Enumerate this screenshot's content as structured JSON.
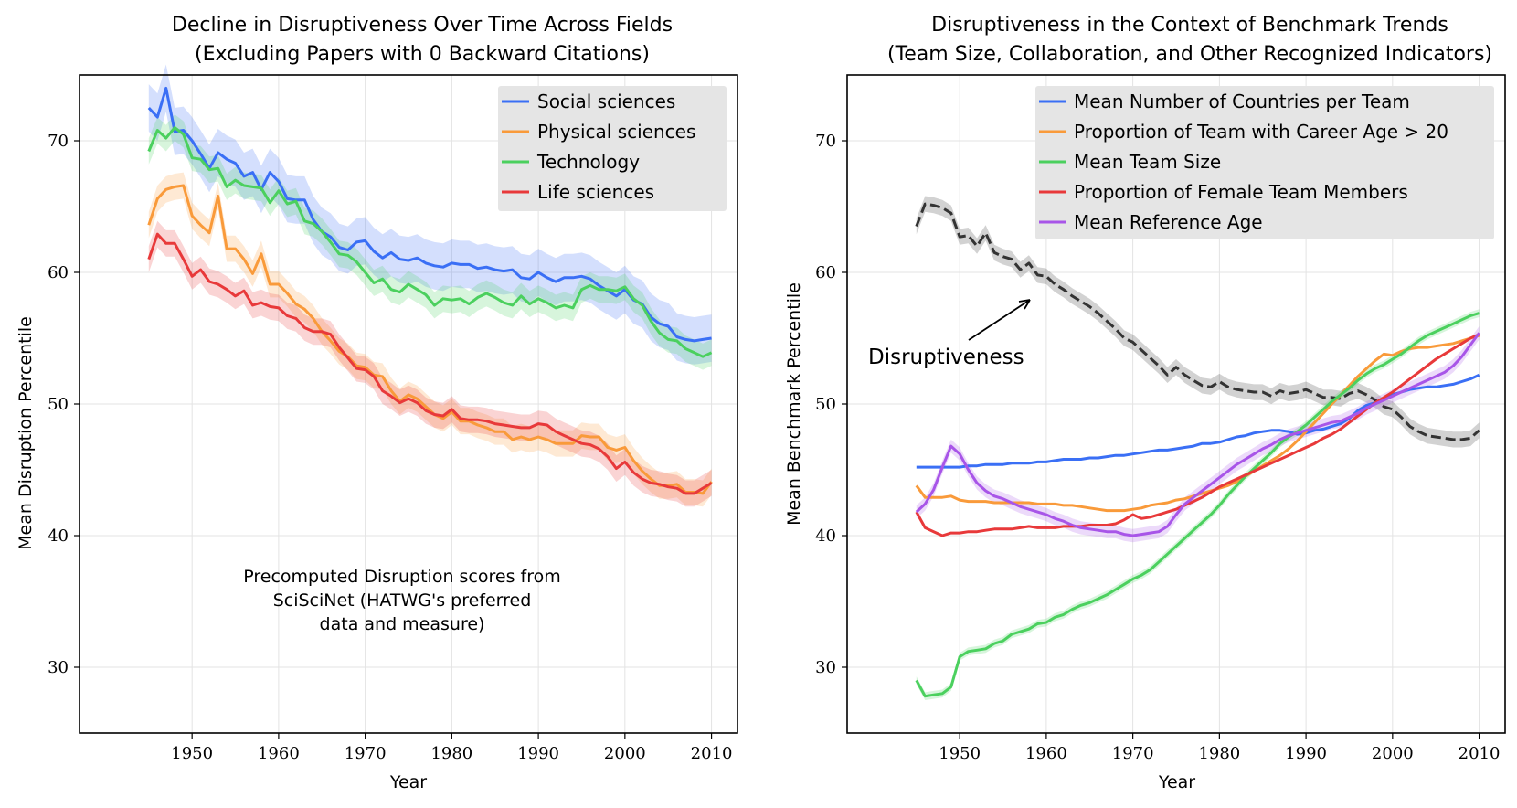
{
  "chart_data": [
    {
      "type": "line",
      "title_line1": "Decline in Disruptiveness Over Time Across Fields",
      "title_line2": "(Excluding Papers with 0 Backward Citations)",
      "xlabel": "Year",
      "ylabel": "Mean Disruption Percentile",
      "xlim": [
        1937,
        2013
      ],
      "ylim": [
        25,
        75
      ],
      "xticks": [
        1950,
        1960,
        1970,
        1980,
        1990,
        2000,
        2010
      ],
      "yticks": [
        30,
        40,
        50,
        60,
        70
      ],
      "grid": true,
      "legend_position": "top-right",
      "note_lines": [
        "Precomputed Disruption scores from",
        "SciSciNet (HATWG's preferred",
        "data and measure)"
      ],
      "x": [
        1945,
        1946,
        1947,
        1948,
        1949,
        1950,
        1951,
        1952,
        1953,
        1954,
        1955,
        1956,
        1957,
        1958,
        1959,
        1960,
        1961,
        1962,
        1963,
        1964,
        1965,
        1966,
        1967,
        1968,
        1969,
        1970,
        1971,
        1972,
        1973,
        1974,
        1975,
        1976,
        1977,
        1978,
        1979,
        1980,
        1981,
        1982,
        1983,
        1984,
        1985,
        1986,
        1987,
        1988,
        1989,
        1990,
        1991,
        1992,
        1993,
        1994,
        1995,
        1996,
        1997,
        1998,
        1999,
        2000,
        2001,
        2002,
        2003,
        2004,
        2005,
        2006,
        2007,
        2008,
        2009,
        2010
      ],
      "series": [
        {
          "name": "Social sciences",
          "color": "#3a6ff5",
          "band": 1.8,
          "values": [
            72.5,
            71.8,
            74.0,
            70.7,
            70.8,
            70.0,
            69.0,
            67.9,
            69.1,
            68.6,
            68.3,
            67.3,
            67.6,
            66.3,
            67.6,
            66.9,
            65.6,
            65.5,
            65.5,
            64.0,
            63.1,
            62.7,
            61.9,
            61.7,
            62.3,
            62.4,
            61.6,
            61.1,
            61.5,
            61.0,
            60.9,
            61.1,
            60.7,
            60.5,
            60.4,
            60.7,
            60.6,
            60.6,
            60.3,
            60.4,
            60.2,
            60.1,
            60.2,
            59.6,
            59.5,
            60.0,
            59.6,
            59.3,
            59.6,
            59.6,
            59.7,
            59.5,
            59.0,
            58.6,
            58.2,
            58.7,
            57.9,
            57.6,
            56.6,
            56.1,
            55.9,
            55.1,
            54.9,
            54.8,
            54.9,
            55.0
          ]
        },
        {
          "name": "Physical sciences",
          "color": "#f99a3a",
          "band": 1.0,
          "values": [
            63.6,
            65.6,
            66.3,
            66.5,
            66.6,
            64.3,
            63.6,
            63.0,
            65.8,
            61.8,
            61.8,
            61.0,
            59.9,
            61.4,
            59.1,
            59.1,
            58.4,
            57.6,
            57.2,
            56.5,
            55.5,
            54.8,
            54.0,
            53.6,
            52.9,
            52.8,
            52.2,
            52.1,
            51.0,
            50.2,
            50.7,
            50.4,
            49.8,
            49.2,
            48.9,
            49.4,
            48.7,
            48.7,
            48.4,
            48.2,
            47.9,
            47.9,
            47.3,
            47.5,
            47.3,
            47.5,
            47.3,
            47.0,
            47.0,
            47.0,
            47.6,
            47.5,
            47.5,
            46.7,
            46.5,
            46.7,
            45.7,
            44.9,
            44.3,
            43.8,
            43.8,
            43.9,
            43.3,
            43.3,
            43.2,
            44.1
          ]
        },
        {
          "name": "Technology",
          "color": "#4bd05e",
          "band": 1.0,
          "values": [
            69.2,
            70.8,
            70.2,
            71.0,
            70.5,
            68.7,
            68.6,
            67.8,
            67.9,
            66.5,
            67.0,
            66.6,
            66.5,
            66.4,
            65.3,
            66.2,
            65.2,
            65.4,
            63.9,
            63.7,
            63.1,
            62.3,
            61.4,
            61.3,
            60.8,
            60.0,
            59.2,
            59.5,
            58.7,
            58.5,
            59.1,
            58.7,
            58.3,
            57.5,
            58.0,
            57.9,
            58.0,
            57.6,
            58.1,
            58.4,
            58.1,
            57.7,
            57.5,
            58.2,
            57.6,
            58.0,
            57.7,
            57.3,
            57.5,
            57.3,
            58.7,
            59.0,
            58.7,
            58.7,
            58.6,
            58.9,
            58.0,
            57.5,
            56.3,
            55.4,
            54.9,
            54.8,
            54.2,
            53.9,
            53.6,
            53.9
          ]
        },
        {
          "name": "Life sciences",
          "color": "#e8393a",
          "band": 1.0,
          "values": [
            61.0,
            62.9,
            62.2,
            62.2,
            61.0,
            59.7,
            60.2,
            59.3,
            59.1,
            58.7,
            58.2,
            58.6,
            57.5,
            57.7,
            57.4,
            57.3,
            56.7,
            56.5,
            55.8,
            55.5,
            55.5,
            55.3,
            54.3,
            53.5,
            52.7,
            52.6,
            52.1,
            51.0,
            50.6,
            50.1,
            50.4,
            50.1,
            49.5,
            49.2,
            49.1,
            49.6,
            48.9,
            48.8,
            48.8,
            48.7,
            48.5,
            48.4,
            48.3,
            48.2,
            48.2,
            48.5,
            48.4,
            47.9,
            47.6,
            47.3,
            47.0,
            46.9,
            46.6,
            46.0,
            45.1,
            45.6,
            44.8,
            44.3,
            44.0,
            43.9,
            43.7,
            43.6,
            43.2,
            43.2,
            43.6,
            44.0
          ]
        }
      ]
    },
    {
      "type": "line",
      "title_line1": "Disruptiveness in the Context of Benchmark Trends",
      "title_line2": "(Team Size, Collaboration, and Other Recognized Indicators)",
      "xlabel": "Year",
      "ylabel": "Mean Benchmark Percentile",
      "xlim": [
        1937,
        2013
      ],
      "ylim": [
        25,
        75
      ],
      "xticks": [
        1950,
        1960,
        1970,
        1980,
        1990,
        2000,
        2010
      ],
      "yticks": [
        30,
        40,
        50,
        60,
        70
      ],
      "grid": true,
      "legend_position": "top-right",
      "annotation": {
        "text": "Disruptiveness",
        "points_to_year": 1962,
        "points_to_value": 57.9
      },
      "x": [
        1945,
        1946,
        1947,
        1948,
        1949,
        1950,
        1951,
        1952,
        1953,
        1954,
        1955,
        1956,
        1957,
        1958,
        1959,
        1960,
        1961,
        1962,
        1963,
        1964,
        1965,
        1966,
        1967,
        1968,
        1969,
        1970,
        1971,
        1972,
        1973,
        1974,
        1975,
        1976,
        1977,
        1978,
        1979,
        1980,
        1981,
        1982,
        1983,
        1984,
        1985,
        1986,
        1987,
        1988,
        1989,
        1990,
        1991,
        1992,
        1993,
        1994,
        1995,
        1996,
        1997,
        1998,
        1999,
        2000,
        2001,
        2002,
        2003,
        2004,
        2005,
        2006,
        2007,
        2008,
        2009,
        2010
      ],
      "disruptiveness": {
        "name": "Disruptiveness",
        "color": "#333333",
        "band": 0.6,
        "dashed": true,
        "values": [
          63.5,
          65.2,
          65.1,
          64.9,
          64.5,
          62.7,
          62.8,
          62.0,
          63.0,
          61.5,
          61.2,
          61.0,
          60.2,
          60.7,
          59.8,
          59.7,
          59.1,
          58.7,
          58.2,
          57.8,
          57.4,
          56.9,
          56.3,
          55.7,
          55.0,
          54.7,
          54.1,
          53.5,
          52.9,
          52.2,
          52.8,
          52.2,
          51.8,
          51.4,
          51.3,
          51.7,
          51.3,
          51.1,
          51.0,
          50.9,
          50.9,
          50.6,
          51.0,
          50.8,
          50.9,
          51.1,
          50.8,
          50.5,
          50.5,
          50.4,
          50.8,
          51.0,
          50.7,
          50.3,
          49.8,
          49.6,
          49.0,
          48.3,
          47.9,
          47.6,
          47.5,
          47.4,
          47.3,
          47.3,
          47.4,
          48.0
        ]
      },
      "series": [
        {
          "name": "Mean Number of Countries per Team",
          "color": "#3a6ff5",
          "band": 0,
          "values": [
            45.2,
            45.2,
            45.2,
            45.2,
            45.2,
            45.2,
            45.3,
            45.3,
            45.4,
            45.4,
            45.4,
            45.5,
            45.5,
            45.5,
            45.6,
            45.6,
            45.7,
            45.8,
            45.8,
            45.8,
            45.9,
            45.9,
            46.0,
            46.1,
            46.1,
            46.2,
            46.3,
            46.4,
            46.5,
            46.5,
            46.6,
            46.7,
            46.8,
            47.0,
            47.0,
            47.1,
            47.3,
            47.5,
            47.6,
            47.8,
            47.9,
            48.0,
            48.0,
            47.9,
            47.7,
            47.8,
            48.0,
            48.1,
            48.3,
            48.5,
            48.9,
            49.5,
            49.9,
            50.1,
            50.4,
            50.7,
            50.9,
            51.1,
            51.2,
            51.3,
            51.3,
            51.4,
            51.5,
            51.7,
            51.9,
            52.2
          ]
        },
        {
          "name": "Proportion of Team with Career Age > 20",
          "color": "#f99a3a",
          "band": 0,
          "values": [
            43.8,
            42.9,
            42.9,
            42.9,
            43.0,
            42.7,
            42.6,
            42.6,
            42.6,
            42.5,
            42.5,
            42.5,
            42.5,
            42.5,
            42.4,
            42.4,
            42.4,
            42.3,
            42.3,
            42.2,
            42.1,
            42.0,
            41.9,
            41.9,
            41.9,
            42.0,
            42.1,
            42.3,
            42.4,
            42.5,
            42.7,
            42.8,
            43.0,
            43.2,
            43.4,
            43.6,
            43.8,
            44.1,
            44.5,
            44.9,
            45.3,
            45.7,
            46.1,
            46.6,
            47.2,
            47.9,
            48.6,
            49.3,
            50.0,
            50.7,
            51.4,
            52.1,
            52.7,
            53.3,
            53.8,
            53.7,
            54.0,
            54.2,
            54.3,
            54.3,
            54.4,
            54.5,
            54.6,
            54.8,
            55.0,
            55.2
          ]
        },
        {
          "name": "Mean Team Size",
          "color": "#4bd05e",
          "band": 0.3,
          "values": [
            29.0,
            27.8,
            27.9,
            28.0,
            28.5,
            30.8,
            31.2,
            31.3,
            31.4,
            31.8,
            32.0,
            32.5,
            32.7,
            32.9,
            33.3,
            33.4,
            33.8,
            34.0,
            34.4,
            34.7,
            34.9,
            35.2,
            35.5,
            35.9,
            36.3,
            36.7,
            37.0,
            37.4,
            38.0,
            38.6,
            39.2,
            39.8,
            40.4,
            41.0,
            41.6,
            42.3,
            43.1,
            43.8,
            44.5,
            45.1,
            45.7,
            46.3,
            47.0,
            47.5,
            47.9,
            48.4,
            49.0,
            49.6,
            50.2,
            50.7,
            51.2,
            51.8,
            52.3,
            52.7,
            53.0,
            53.4,
            53.8,
            54.3,
            54.8,
            55.2,
            55.5,
            55.8,
            56.1,
            56.4,
            56.7,
            56.9
          ]
        },
        {
          "name": "Proportion of Female Team Members",
          "color": "#e8393a",
          "band": 0,
          "values": [
            41.8,
            40.6,
            40.3,
            40.0,
            40.2,
            40.2,
            40.3,
            40.3,
            40.4,
            40.5,
            40.5,
            40.5,
            40.6,
            40.7,
            40.6,
            40.6,
            40.6,
            40.7,
            40.7,
            40.7,
            40.8,
            40.8,
            40.8,
            40.9,
            41.2,
            41.6,
            41.3,
            41.4,
            41.6,
            41.8,
            42.0,
            42.3,
            42.6,
            42.9,
            43.3,
            43.7,
            44.0,
            44.3,
            44.6,
            44.9,
            45.2,
            45.5,
            45.8,
            46.1,
            46.4,
            46.7,
            47.0,
            47.4,
            47.7,
            48.1,
            48.6,
            49.1,
            49.6,
            50.1,
            50.5,
            50.9,
            51.4,
            51.9,
            52.4,
            52.9,
            53.4,
            53.8,
            54.2,
            54.6,
            55.0,
            55.3
          ]
        },
        {
          "name": "Mean Reference Age",
          "color": "#a855e8",
          "band": 0.5,
          "values": [
            41.8,
            42.4,
            43.5,
            45.2,
            46.8,
            46.2,
            45.0,
            44.0,
            43.4,
            43.0,
            42.8,
            42.5,
            42.2,
            42.0,
            41.8,
            41.6,
            41.3,
            41.1,
            40.8,
            40.6,
            40.5,
            40.4,
            40.3,
            40.3,
            40.1,
            40.0,
            40.1,
            40.2,
            40.3,
            40.7,
            41.6,
            42.4,
            42.9,
            43.4,
            43.9,
            44.4,
            44.9,
            45.4,
            45.8,
            46.2,
            46.6,
            46.9,
            47.3,
            47.6,
            47.8,
            48.0,
            48.2,
            48.4,
            48.6,
            48.7,
            49.0,
            49.3,
            49.7,
            50.0,
            50.3,
            50.6,
            50.9,
            51.2,
            51.5,
            51.8,
            52.1,
            52.4,
            52.9,
            53.6,
            54.5,
            55.4
          ]
        }
      ]
    }
  ]
}
